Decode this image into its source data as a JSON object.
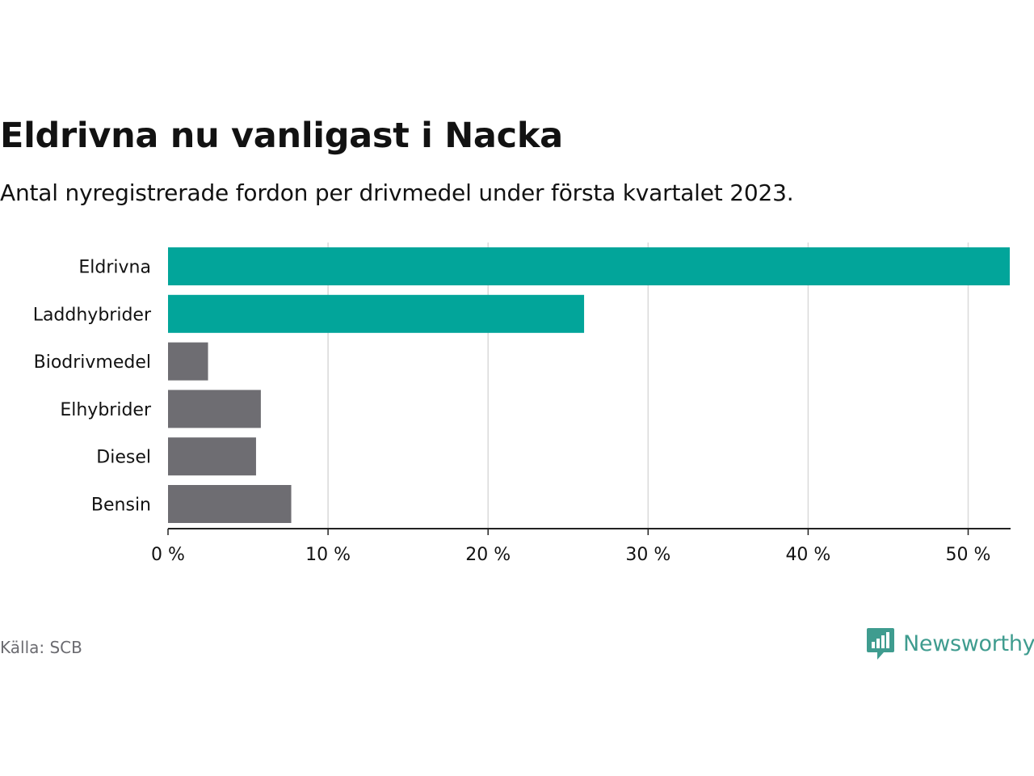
{
  "title": "Eldrivna nu vanligast i Nacka",
  "subtitle": "Antal nyregistrerade fordon per drivmedel under första kvartalet 2023.",
  "source": "Källa: SCB",
  "brand": {
    "name": "Newsworthy",
    "icon": "newsworthy-logo-icon"
  },
  "colors": {
    "highlight": "#02a59a",
    "neutral": "#6e6d72",
    "grid": "#d9d9d9",
    "axis": "#222222",
    "text": "#121212"
  },
  "chart_data": {
    "type": "bar",
    "orientation": "horizontal",
    "categories": [
      "Eldrivna",
      "Laddhybrider",
      "Biodrivmedel",
      "Elhybrider",
      "Diesel",
      "Bensin"
    ],
    "values": [
      52.6,
      26.0,
      2.5,
      5.8,
      5.5,
      7.7
    ],
    "highlighted": [
      true,
      true,
      false,
      false,
      false,
      false
    ],
    "xlim": [
      0,
      52.6
    ],
    "xticks": [
      0,
      10,
      20,
      30,
      40,
      50
    ],
    "tick_labels": [
      "0 %",
      "10 %",
      "20 %",
      "30 %",
      "40 %",
      "50 %"
    ],
    "xlabel": "",
    "ylabel": "",
    "grid": true,
    "unit": "%"
  }
}
